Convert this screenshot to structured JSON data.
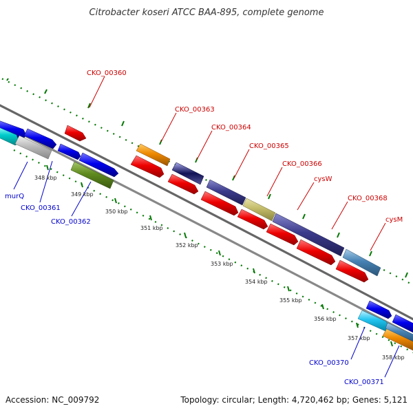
{
  "title": "Citrobacter koseri ATCC BAA-895, complete genome",
  "footer": {
    "accession": "Accession: NC_009792",
    "summary": "Topology: circular; Length: 4,720,462 bp; Genes: 5,121"
  },
  "ticks": {
    "t348": "348 kbp",
    "t349": "349 kbp",
    "t350": "350 kbp",
    "t351": "351 kbp",
    "t352": "352 kbp",
    "t353": "353 kbp",
    "t354": "354 kbp",
    "t355": "355 kbp",
    "t356": "356 kbp",
    "t357": "357 kbp",
    "t358": "358 kbp"
  },
  "labels": {
    "cko00360": "CKO_00360",
    "cko00363": "CKO_00363",
    "cko00364": "CKO_00364",
    "cko00365": "CKO_00365",
    "cko00366": "CKO_00366",
    "cysW": "cysW",
    "cko00368": "CKO_00368",
    "cysM": "cysM",
    "murQ": "murQ",
    "cko00361": "CKO_00361",
    "cko00362": "CKO_00362",
    "cko00370": "CKO_00370",
    "cko00371": "CKO_00371"
  },
  "colors": {
    "red_label": "#cc0000",
    "blue_label": "#0000cc",
    "gene_red": "#ee0000",
    "gene_blue": "#0000ee",
    "gene_orange": "#ee8800",
    "gene_purple": "#3b3b8c",
    "gene_khaki": "#c2bb6a",
    "gene_steel": "#4682b4",
    "gene_cyan": "#00cccc",
    "gene_olive": "#5f8a1e",
    "gene_gray": "#bbbbbb",
    "backbone": "#777777",
    "tick_green": "#007700"
  }
}
